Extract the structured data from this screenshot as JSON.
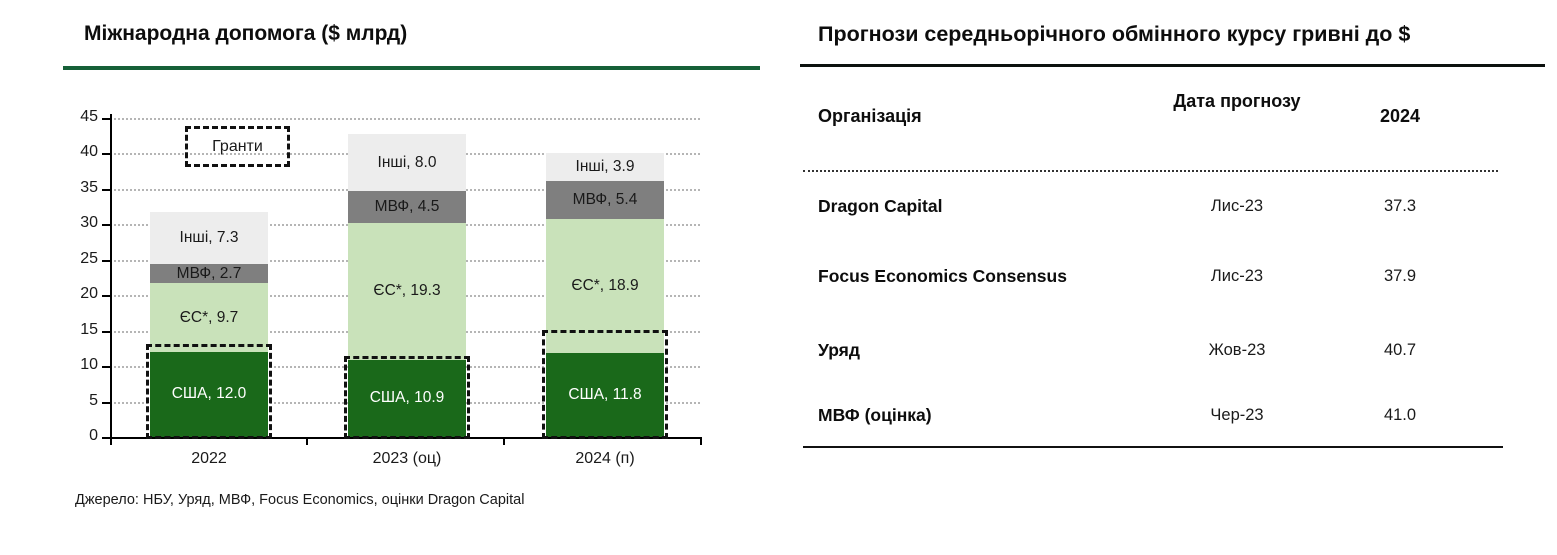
{
  "left_panel": {
    "title": "Міжнародна допомога ($ млрд)",
    "accent_color": "#166038",
    "source": "Джерело: НБУ, Уряд, МВФ, Focus Economics, оцінки Dragon Capital"
  },
  "chart_data": {
    "type": "bar",
    "subtype": "stacked",
    "title": "Міжнародна допомога ($ млрд)",
    "categories": [
      "2022",
      "2023 (оц)",
      "2024 (п)"
    ],
    "series": [
      {
        "name": "США",
        "values": [
          12.0,
          10.9,
          11.8
        ],
        "labels": [
          "США, 12.0",
          "США, 10.9",
          "США, 11.8"
        ],
        "color": "#1a691a",
        "label_color": "#ffffff"
      },
      {
        "name": "ЄС*",
        "values": [
          9.7,
          19.3,
          18.9
        ],
        "labels": [
          "ЄС*, 9.7",
          "ЄС*, 19.3",
          "ЄС*, 18.9"
        ],
        "color": "#c9e2ba",
        "label_color": "#1a1a1a"
      },
      {
        "name": "МВФ",
        "values": [
          2.7,
          4.5,
          5.4
        ],
        "labels": [
          "МВФ, 2.7",
          "МВФ, 4.5",
          "МВФ, 5.4"
        ],
        "color": "#7f7f7f",
        "label_color": "#1a1a1a"
      },
      {
        "name": "Інші",
        "values": [
          7.3,
          8.0,
          3.9
        ],
        "labels": [
          "Інші, 7.3",
          "Інші, 8.0",
          "Інші, 3.9"
        ],
        "color": "#ededed",
        "label_color": "#1a1a1a"
      }
    ],
    "totals": [
      31.7,
      42.7,
      40.0
    ],
    "grants_legend_label": "Гранти",
    "grants_box_values": [
      13.1,
      11.4,
      15.1
    ],
    "xlabel": "",
    "ylabel": "",
    "ylim": [
      0,
      45
    ],
    "y_ticks": [
      0,
      5,
      10,
      15,
      20,
      25,
      30,
      35,
      40,
      45
    ],
    "grid": "dotted horizontal",
    "legend_position": "top-left dashed box (denotes grants portion)"
  },
  "table": {
    "title": "Прогнози середньорічного обмінного курсу гривні до $",
    "columns": {
      "org": "Організація",
      "date": "Дата прогнозу",
      "year": "2024"
    },
    "rows": [
      {
        "org": "Dragon Capital",
        "date": "Лис-23",
        "value": "37.3"
      },
      {
        "org": "Focus Economics Consensus",
        "date": "Лис-23",
        "value": "37.9"
      },
      {
        "org": "Уряд",
        "date": "Жов-23",
        "value": "40.7"
      },
      {
        "org": "МВФ (оцінка)",
        "date": "Чер-23",
        "value": "41.0"
      }
    ]
  }
}
